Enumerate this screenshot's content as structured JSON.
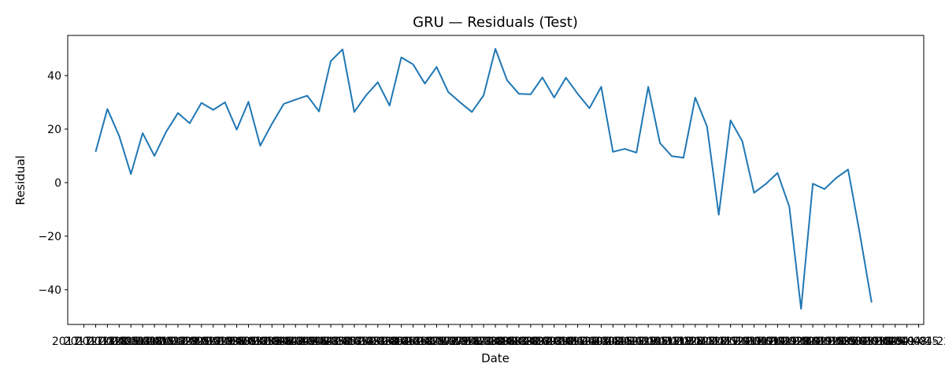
{
  "chart_data": {
    "type": "line",
    "title": "GRU — Residuals (Test)",
    "xlabel": "Date",
    "ylabel": "Residual",
    "ylim": [
      -53,
      55
    ],
    "y_ticks": [
      -40,
      -20,
      0,
      20,
      40
    ],
    "y_tick_labels": [
      "−40",
      "−20",
      "0",
      "20",
      "40"
    ],
    "grid": false,
    "legend": "none",
    "line_color": "#1f77b4",
    "x_tick_labels": [
      "2017-12-11",
      "2017-12-18",
      "2017-12-25",
      "2018-01-01",
      "2018-01-08",
      "2018-01-15",
      "2018-01-22",
      "2018-01-29",
      "2018-02-05",
      "2018-02-12",
      "2018-02-19",
      "2018-02-26",
      "2018-03-05",
      "2018-03-12",
      "2018-03-19",
      "2018-03-26",
      "2018-04-02",
      "2018-04-09",
      "2018-04-16",
      "2018-04-23",
      "2018-04-30",
      "2018-05-07",
      "2018-05-14",
      "2018-05-21",
      "2018-05-28",
      "2018-06-04",
      "2018-06-11",
      "2018-06-18",
      "2018-06-25",
      "2018-07-02",
      "2018-07-09",
      "2018-07-16",
      "2018-07-23",
      "2018-07-30",
      "2018-08-06",
      "2018-08-13",
      "2018-08-20",
      "2018-08-27",
      "2018-09-03",
      "2018-09-10",
      "2018-09-17",
      "2018-09-24",
      "2018-10-01",
      "2018-10-08",
      "2018-10-15",
      "2018-10-22",
      "2018-10-29",
      "2018-11-05",
      "2018-11-12",
      "2018-11-19",
      "2018-11-26",
      "2018-12-03",
      "2018-12-10",
      "2018-12-17",
      "2018-12-24",
      "2018-12-31",
      "2019-01-07",
      "2019-01-14",
      "2019-01-21",
      "2019-01-28",
      "2019-02-04",
      "2019-02-11",
      "2019-02-18",
      "2019-02-25",
      "2019-03-04",
      "2019-03-11",
      "2019-03-18",
      "2019-03-25",
      "2019-04-01",
      "2019-04-08",
      "2019-04-15",
      "2019-04-22"
    ],
    "x": [
      "2017-12-18",
      "2017-12-25",
      "2018-01-01",
      "2018-01-08",
      "2018-01-15",
      "2018-01-22",
      "2018-01-29",
      "2018-02-05",
      "2018-02-12",
      "2018-02-19",
      "2018-02-26",
      "2018-03-05",
      "2018-03-12",
      "2018-03-19",
      "2018-03-26",
      "2018-04-02",
      "2018-04-09",
      "2018-04-16",
      "2018-04-23",
      "2018-04-30",
      "2018-05-07",
      "2018-05-14",
      "2018-05-21",
      "2018-05-28",
      "2018-06-04",
      "2018-06-11",
      "2018-06-18",
      "2018-06-25",
      "2018-07-02",
      "2018-07-09",
      "2018-07-16",
      "2018-07-23",
      "2018-07-30",
      "2018-08-06",
      "2018-08-13",
      "2018-08-20",
      "2018-08-27",
      "2018-09-03",
      "2018-09-10",
      "2018-09-17",
      "2018-09-24",
      "2018-10-01",
      "2018-10-08",
      "2018-10-15",
      "2018-10-22",
      "2018-10-29",
      "2018-11-05",
      "2018-11-12",
      "2018-11-19",
      "2018-11-26",
      "2018-12-03",
      "2018-12-10",
      "2018-12-17",
      "2018-12-24",
      "2018-12-31",
      "2019-01-07",
      "2019-01-14",
      "2019-01-21",
      "2019-01-28",
      "2019-02-04",
      "2019-02-11",
      "2019-02-18",
      "2019-02-25",
      "2019-03-04",
      "2019-03-11",
      "2019-03-18",
      "2019-03-25",
      "2019-04-01",
      "2019-04-08",
      "2019-04-15"
    ],
    "series": [
      {
        "values": [
          11.5,
          27.5,
          17.5,
          3.2,
          18.5,
          10.0,
          19.0,
          26.0,
          22.2,
          29.8,
          27.2,
          30.0,
          19.8,
          30.2,
          13.8,
          22.0,
          29.4,
          31.0,
          32.5,
          26.6,
          45.4,
          49.8,
          26.4,
          32.6,
          37.5,
          28.8,
          46.8,
          44.2,
          37.0,
          43.2,
          33.8,
          30.0,
          26.4,
          32.6,
          50.0,
          38.2,
          33.2,
          33.0,
          39.3,
          31.8,
          39.2,
          33.2,
          27.8,
          35.8,
          11.5,
          12.6,
          11.2,
          35.8,
          14.8,
          9.9,
          9.3,
          31.8,
          21.0,
          -12.0,
          23.3,
          15.5,
          -3.8,
          -0.5,
          3.6,
          -9.0,
          -47.2,
          -0.4,
          -2.4,
          1.8,
          4.9,
          -19.2,
          -44.8,
          null,
          null,
          null
        ]
      }
    ]
  }
}
